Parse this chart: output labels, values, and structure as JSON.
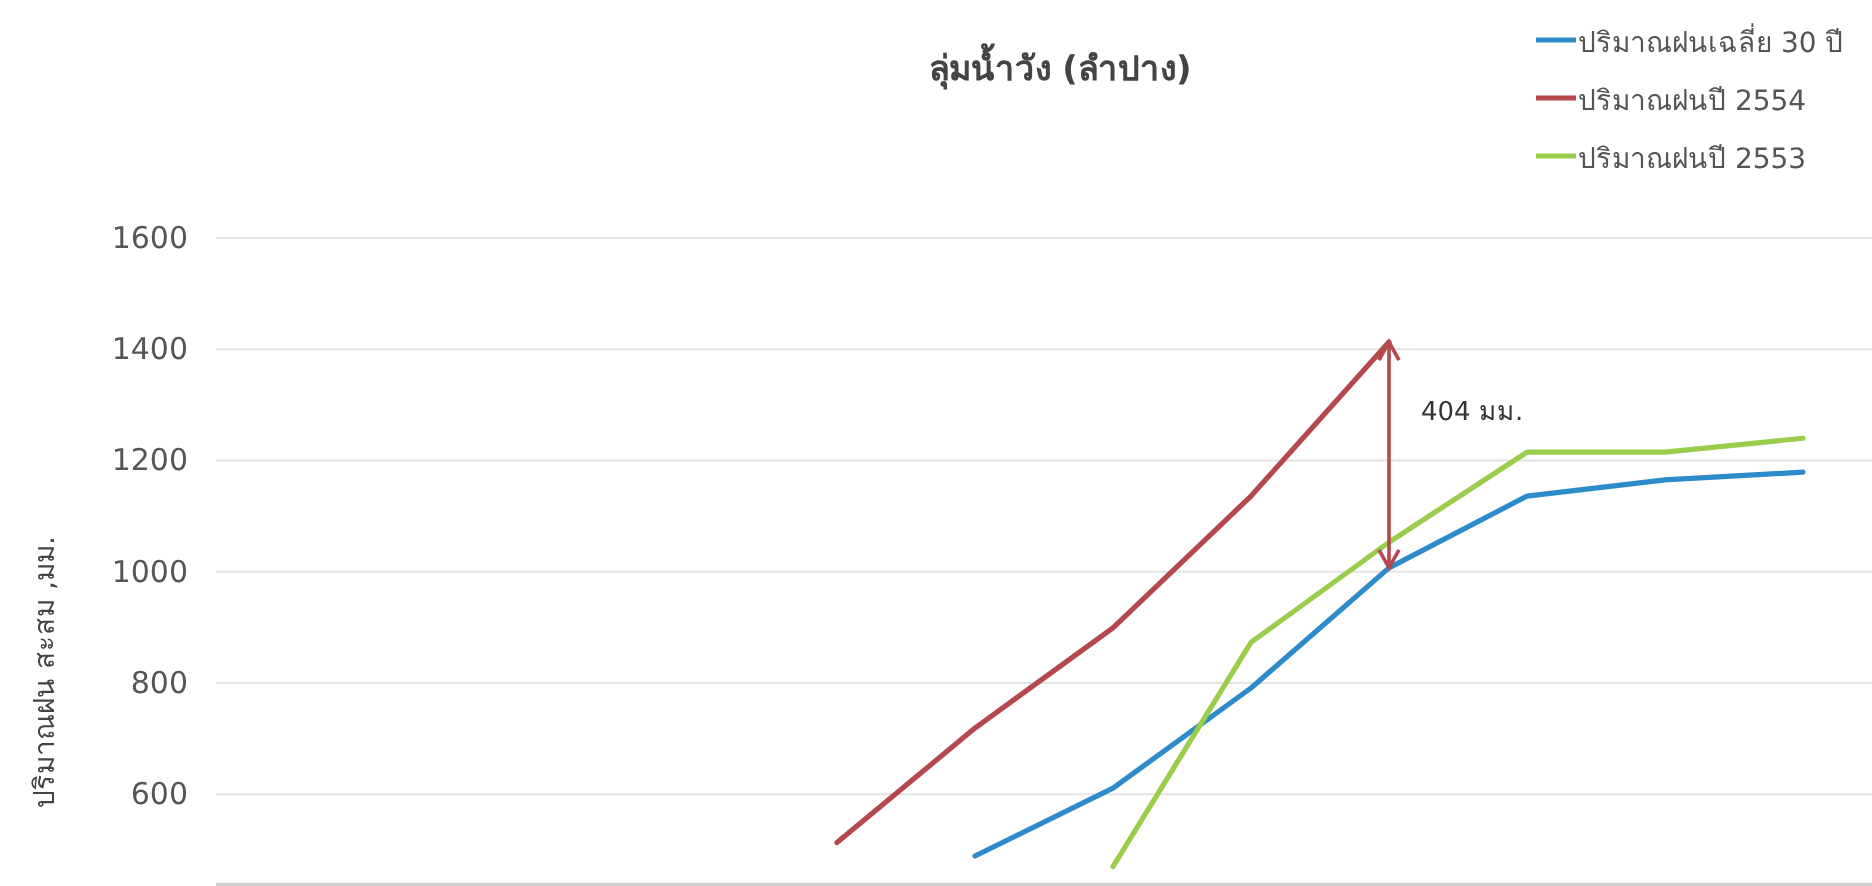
{
  "chart_data": {
    "type": "line",
    "title": "ลุ่มน้ำวัง (ลำปาง)",
    "ylabel": "ปริมาณฝน สะสม ,มม.",
    "categories": [
      null,
      null,
      null,
      null,
      null,
      null,
      null,
      null,
      null,
      null,
      null,
      null
    ],
    "series": [
      {
        "name": "ปริมาณฝนเฉลี่ย 30 ปี",
        "color": "#2e8bc9",
        "values": [
          null,
          null,
          null,
          null,
          null,
          489,
          611,
          791,
          1007,
          1136,
          1165,
          1179
        ]
      },
      {
        "name": "ปริมาณฝนปี 2554",
        "color": "#b5484d",
        "values": [
          null,
          null,
          null,
          null,
          513,
          719,
          899,
          1136,
          1413,
          null,
          null,
          null
        ]
      },
      {
        "name": "ปริมาณฝนปี 2553",
        "color": "#9acd4c",
        "values": [
          null,
          null,
          null,
          null,
          null,
          null,
          470,
          873,
          1053,
          1215,
          1215,
          1240
        ]
      }
    ],
    "annotations": [
      "404 มม."
    ],
    "ylim": [
      435,
      1600
    ],
    "yticks": [
      600,
      800,
      1000,
      1200,
      1400,
      1600
    ],
    "grid": "y",
    "legend": "top right",
    "marker": "none",
    "line_style": "solid"
  }
}
